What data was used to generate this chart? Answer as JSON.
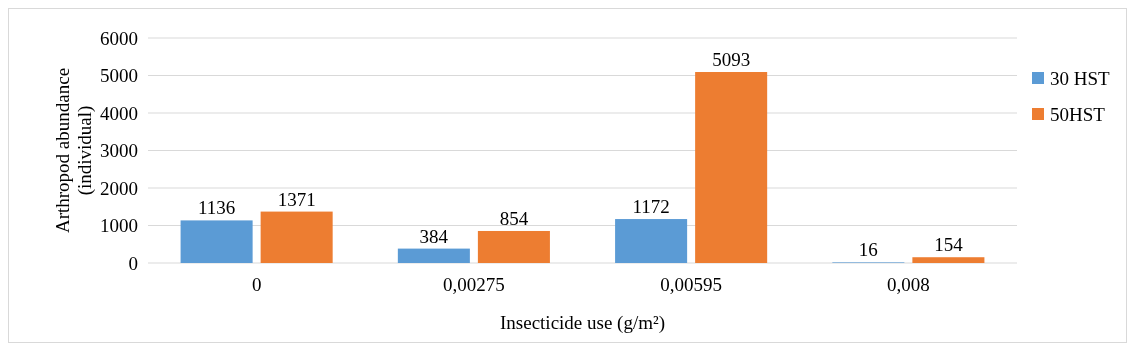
{
  "chart_data": {
    "type": "bar",
    "xlabel": "Insecticide use (g/m²)",
    "ylabel": "Arthropod abundance (individual)",
    "categories": [
      "0",
      "0,00275",
      "0,00595",
      "0,008"
    ],
    "series": [
      {
        "name": "30 HST",
        "color": "#5b9bd5",
        "values": [
          1136,
          384,
          1172,
          16
        ]
      },
      {
        "name": "50HST",
        "color": "#ed7d31",
        "values": [
          1371,
          854,
          5093,
          154
        ]
      }
    ],
    "ylim": [
      0,
      6000
    ],
    "yticks": [
      0,
      1000,
      2000,
      3000,
      4000,
      5000,
      6000
    ],
    "grid": "y",
    "legend": "right",
    "data_labels": true
  }
}
